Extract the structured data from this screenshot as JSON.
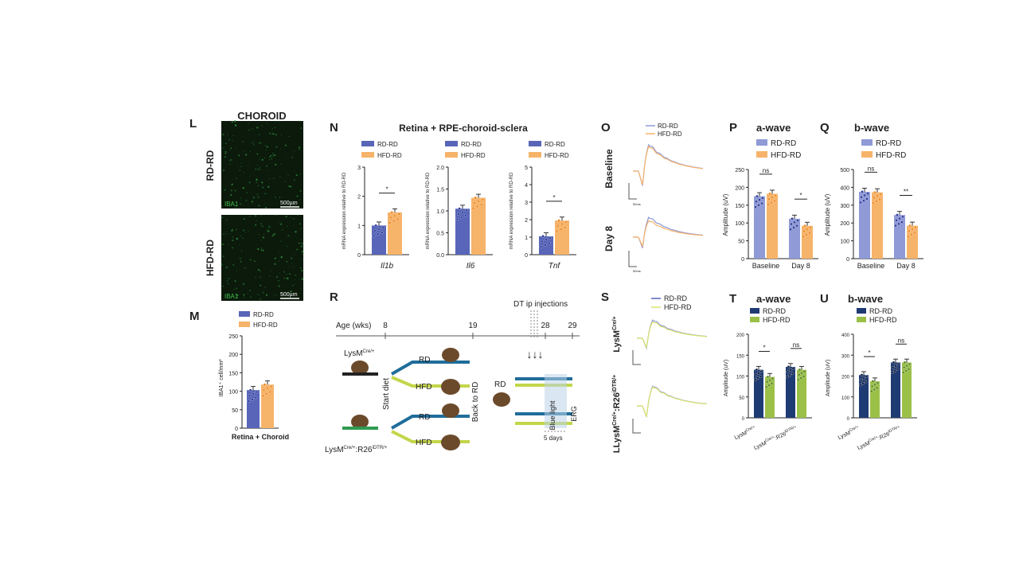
{
  "panels": {
    "L": {
      "letter": "L",
      "title": "CHOROID",
      "rows": [
        "RD-RD",
        "HFD-RD"
      ],
      "stain": "IBA1",
      "scale": "500µm"
    },
    "M": {
      "letter": "M",
      "ylabel": "IBA1⁺ cell/mm²",
      "xlabel": "Retina + Choroid",
      "legend": [
        "RD-RD",
        "HFD-RD"
      ],
      "chart_data": {
        "type": "bar",
        "categories": [
          "Retina + Choroid"
        ],
        "ylim": [
          0,
          250
        ],
        "yticks": [
          0,
          50,
          100,
          150,
          200,
          250
        ],
        "series": [
          {
            "name": "RD-RD",
            "values": [
              103
            ]
          },
          {
            "name": "HFD-RD",
            "values": [
              118
            ]
          }
        ]
      }
    },
    "N": {
      "letter": "N",
      "title": "Retina + RPE-choroid-sclera",
      "legend": [
        "RD-RD",
        "HFD-RD"
      ],
      "ylabel": "mRNA expression relative to RD-RD",
      "chart_data": [
        {
          "type": "bar",
          "gene": "Il1b",
          "ylim": [
            0,
            3
          ],
          "yticks": [
            0,
            1,
            2,
            3
          ],
          "sig": "*",
          "series": [
            {
              "name": "RD-RD",
              "values": [
                1.0
              ]
            },
            {
              "name": "HFD-RD",
              "values": [
                1.45
              ]
            }
          ]
        },
        {
          "type": "bar",
          "gene": "Il6",
          "ylim": [
            0,
            2.0
          ],
          "yticks": [
            "0.0",
            "0.5",
            "1.0",
            "1.5",
            "2.0"
          ],
          "sig": "",
          "series": [
            {
              "name": "RD-RD",
              "values": [
                1.05
              ]
            },
            {
              "name": "HFD-RD",
              "values": [
                1.3
              ]
            }
          ]
        },
        {
          "type": "bar",
          "gene": "Tnf",
          "ylim": [
            0,
            5
          ],
          "yticks": [
            0,
            1,
            2,
            3,
            4,
            5
          ],
          "sig": "*",
          "series": [
            {
              "name": "RD-RD",
              "values": [
                1.05
              ]
            },
            {
              "name": "HFD-RD",
              "values": [
                1.95
              ]
            }
          ]
        }
      ]
    },
    "O": {
      "letter": "O",
      "rows": [
        "Baseline",
        "Day 8"
      ],
      "legend": [
        "RD-RD",
        "HFD-RD"
      ],
      "scale_x": "50ms"
    },
    "P": {
      "letter": "P",
      "title": "a-wave",
      "ylabel": "Amplitude (uV)",
      "legend": [
        "RD-RD",
        "HFD-RD"
      ],
      "chart_data": {
        "type": "bar",
        "categories": [
          "Baseline",
          "Day 8"
        ],
        "ylim": [
          0,
          250
        ],
        "yticks": [
          0,
          50,
          100,
          150,
          200,
          250
        ],
        "sig": [
          "ns",
          "*"
        ],
        "series": [
          {
            "name": "RD-RD",
            "values": [
              175,
              112
            ]
          },
          {
            "name": "HFD-RD",
            "values": [
              182,
              92
            ]
          }
        ]
      }
    },
    "Q": {
      "letter": "Q",
      "title": "b-wave",
      "ylabel": "Amplitude (uV)",
      "legend": [
        "RD-RD",
        "HFD-RD"
      ],
      "chart_data": {
        "type": "bar",
        "categories": [
          "Baseline",
          "Day 8"
        ],
        "ylim": [
          0,
          500
        ],
        "yticks": [
          0,
          100,
          200,
          300,
          400,
          500
        ],
        "sig": [
          "ns",
          "**"
        ],
        "series": [
          {
            "name": "RD-RD",
            "values": [
              375,
              245
            ]
          },
          {
            "name": "HFD-RD",
            "values": [
              372,
              185
            ]
          }
        ]
      }
    },
    "R": {
      "letter": "R",
      "age_label": "Age (wks)",
      "ticks": [
        "8",
        "19",
        "28",
        "29"
      ],
      "dt": "DT ip injections",
      "mouse1": "LysM",
      "mouse1_sup": "Cre/+",
      "mouse2": "LysM",
      "mouse2_sup": "Cre/+",
      "mouse2_mid": ":R26",
      "mouse2_sup2": "iDTR/+",
      "start": "Start diet",
      "back": "Back to RD",
      "rd": "RD",
      "hfd": "HFD",
      "blue": "Blue light",
      "erg": "ERG",
      "days": "5 days"
    },
    "S": {
      "letter": "S",
      "legend": [
        "RD-RD",
        "HFD-RD"
      ],
      "row1": "LysM",
      "row1_sup": "Cre/+",
      "row2": "LLysM",
      "row2_sup": "Cre/+",
      "row2_mid": ":R26",
      "row2_sup2": "iDTR/+"
    },
    "T": {
      "letter": "T",
      "title": "a-wave",
      "ylabel": "Amplitude (uV)",
      "legend": [
        "RD-RD",
        "HFD-RD"
      ],
      "cat1": "LysM",
      "cat1_sup": "Cre/+",
      "cat2": "LysM",
      "cat2_sup": "Cre/+",
      "cat2_mid": ":R26",
      "cat2_sup2": "iDTR/+",
      "chart_data": {
        "type": "bar",
        "categories": [
          "LysM Cre/+",
          "LysM Cre/+:R26 iDTR/+"
        ],
        "ylim": [
          0,
          200
        ],
        "yticks": [
          0,
          50,
          100,
          150,
          200
        ],
        "sig": [
          "*",
          "ns"
        ],
        "series": [
          {
            "name": "RD-RD",
            "values": [
              115,
              122
            ]
          },
          {
            "name": "HFD-RD",
            "values": [
              98,
              115
            ]
          }
        ]
      }
    },
    "U": {
      "letter": "U",
      "title": "b-wave",
      "ylabel": "Amplitude (uV)",
      "legend": [
        "RD-RD",
        "HFD-RD"
      ],
      "cat1": "LysM",
      "cat1_sup": "Cre/+",
      "cat2": "LysM",
      "cat2_sup": "Cre/+",
      "cat2_mid": ":R26",
      "cat2_sup2": "iDTR/+",
      "chart_data": {
        "type": "bar",
        "categories": [
          "LysM Cre/+",
          "LysM Cre/+:R26 iDTR/+"
        ],
        "ylim": [
          0,
          400
        ],
        "yticks": [
          0,
          100,
          200,
          300,
          400
        ],
        "sig": [
          "*",
          "ns"
        ],
        "series": [
          {
            "name": "RD-RD",
            "values": [
              205,
              265
            ]
          },
          {
            "name": "HFD-RD",
            "values": [
              175,
              265
            ]
          }
        ]
      }
    }
  },
  "colors": {
    "rd_blue": "#5865b8",
    "hfd_orange": "#f6b36a",
    "rd_dark": "#1f3b73",
    "hfd_green": "#9bc048",
    "micro_bg": "#0b1a0b",
    "micro_fg": "#2e8a3a",
    "trace_light": "#8f9ad6"
  }
}
